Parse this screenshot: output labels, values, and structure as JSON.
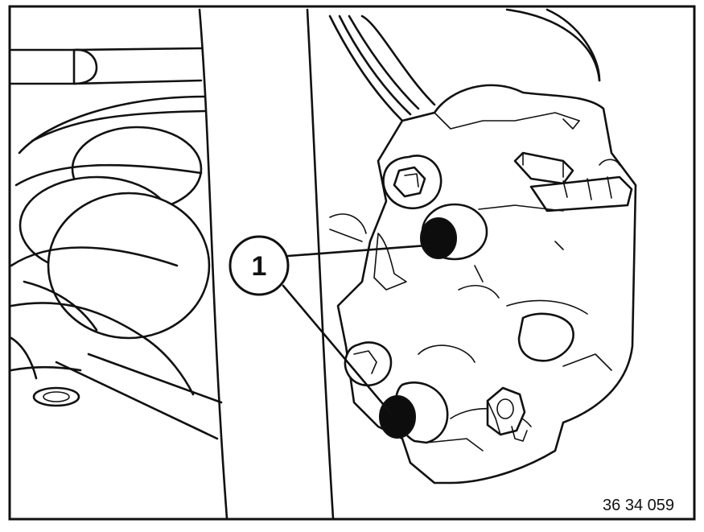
{
  "diagram": {
    "callout_label": "1",
    "figure_number": "36 34 059"
  }
}
